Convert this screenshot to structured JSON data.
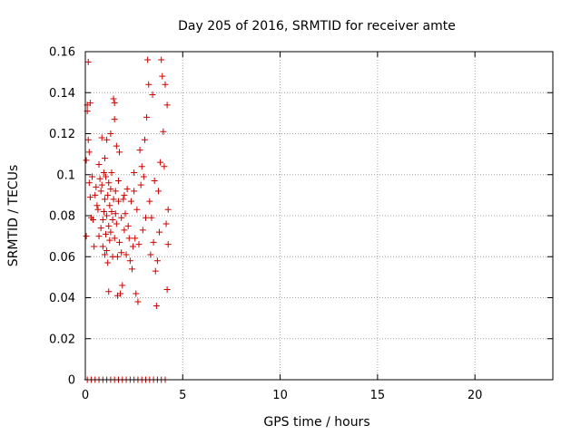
{
  "chart_data": {
    "type": "scatter",
    "title": "Day 205 of 2016, SRMTID for receiver amte",
    "xlabel": "GPS time / hours",
    "ylabel": "SRMTID / TECUs",
    "xlim": [
      0,
      24
    ],
    "ylim": [
      0,
      0.16
    ],
    "xticks": [
      0,
      5,
      10,
      15,
      20
    ],
    "xtick_labels": [
      "0",
      "5",
      "10",
      "15",
      "20"
    ],
    "yticks": [
      0,
      0.02,
      0.04,
      0.06,
      0.08,
      0.1,
      0.12,
      0.14,
      0.16
    ],
    "ytick_labels": [
      "0",
      "0.02",
      "0.04",
      "0.06",
      "0.08",
      "0.1",
      "0.12",
      "0.14",
      "0.16"
    ],
    "grid": true,
    "marker": "plus",
    "color": "#cc0000",
    "series": [
      {
        "name": "SRMTID",
        "points": [
          [
            0.05,
            0.07
          ],
          [
            0.05,
            0.107
          ],
          [
            0.1,
            0.131
          ],
          [
            0.1,
            0.134
          ],
          [
            0.15,
            0.155
          ],
          [
            0.15,
            0.117
          ],
          [
            0.2,
            0.111
          ],
          [
            0.2,
            0.096
          ],
          [
            0.25,
            0.135
          ],
          [
            0.25,
            0.089
          ],
          [
            0.3,
            0.079
          ],
          [
            0.35,
            0.099
          ],
          [
            0.4,
            0.078
          ],
          [
            0.45,
            0.065
          ],
          [
            0.5,
            0.09
          ],
          [
            0.55,
            0.094
          ],
          [
            0.6,
            0.085
          ],
          [
            0.65,
            0.083
          ],
          [
            0.7,
            0.105
          ],
          [
            0.7,
            0.07
          ],
          [
            0.75,
            0.098
          ],
          [
            0.8,
            0.074
          ],
          [
            0.8,
            0.092
          ],
          [
            0.85,
            0.118
          ],
          [
            0.85,
            0.095
          ],
          [
            0.9,
            0.078
          ],
          [
            0.9,
            0.065
          ],
          [
            0.95,
            0.101
          ],
          [
            0.95,
            0.082
          ],
          [
            1.0,
            0.088
          ],
          [
            1.0,
            0.108
          ],
          [
            1.0,
            0.061
          ],
          [
            1.05,
            0.099
          ],
          [
            1.05,
            0.071
          ],
          [
            1.1,
            0.117
          ],
          [
            1.1,
            0.08
          ],
          [
            1.1,
            0.063
          ],
          [
            1.15,
            0.09
          ],
          [
            1.15,
            0.057
          ],
          [
            1.2,
            0.043
          ],
          [
            1.2,
            0.096
          ],
          [
            1.2,
            0.075
          ],
          [
            1.25,
            0.085
          ],
          [
            1.25,
            0.068
          ],
          [
            1.3,
            0.12
          ],
          [
            1.3,
            0.093
          ],
          [
            1.3,
            0.072
          ],
          [
            1.35,
            0.082
          ],
          [
            1.35,
            0.101
          ],
          [
            1.4,
            0.078
          ],
          [
            1.4,
            0.06
          ],
          [
            1.45,
            0.088
          ],
          [
            1.45,
            0.137
          ],
          [
            1.5,
            0.127
          ],
          [
            1.5,
            0.135
          ],
          [
            1.5,
            0.069
          ],
          [
            1.55,
            0.092
          ],
          [
            1.55,
            0.081
          ],
          [
            1.6,
            0.114
          ],
          [
            1.6,
            0.076
          ],
          [
            1.65,
            0.06
          ],
          [
            1.65,
            0.041
          ],
          [
            1.7,
            0.087
          ],
          [
            1.7,
            0.097
          ],
          [
            1.75,
            0.111
          ],
          [
            1.75,
            0.067
          ],
          [
            1.8,
            0.042
          ],
          [
            1.85,
            0.079
          ],
          [
            1.85,
            0.062
          ],
          [
            1.9,
            0.046
          ],
          [
            1.95,
            0.088
          ],
          [
            2.0,
            0.09
          ],
          [
            2.0,
            0.073
          ],
          [
            2.05,
            0.081
          ],
          [
            2.1,
            0.061
          ],
          [
            2.15,
            0.093
          ],
          [
            2.2,
            0.075
          ],
          [
            2.25,
            0.069
          ],
          [
            2.3,
            0.058
          ],
          [
            2.35,
            0.087
          ],
          [
            2.4,
            0.054
          ],
          [
            2.45,
            0.065
          ],
          [
            2.5,
            0.092
          ],
          [
            2.5,
            0.101
          ],
          [
            2.55,
            0.069
          ],
          [
            2.6,
            0.042
          ],
          [
            2.65,
            0.083
          ],
          [
            2.7,
            0.038
          ],
          [
            2.75,
            0.066
          ],
          [
            2.8,
            0.112
          ],
          [
            2.85,
            0.095
          ],
          [
            2.9,
            0.104
          ],
          [
            2.95,
            0.073
          ],
          [
            3.0,
            0.099
          ],
          [
            3.05,
            0.117
          ],
          [
            3.1,
            0.079
          ],
          [
            3.15,
            0.128
          ],
          [
            3.2,
            0.156
          ],
          [
            3.25,
            0.144
          ],
          [
            3.3,
            0.087
          ],
          [
            3.35,
            0.061
          ],
          [
            3.4,
            0.079
          ],
          [
            3.45,
            0.139
          ],
          [
            3.5,
            0.067
          ],
          [
            3.55,
            0.097
          ],
          [
            3.6,
            0.053
          ],
          [
            3.65,
            0.036
          ],
          [
            3.7,
            0.058
          ],
          [
            3.75,
            0.092
          ],
          [
            3.8,
            0.072
          ],
          [
            3.85,
            0.106
          ],
          [
            3.9,
            0.156
          ],
          [
            3.95,
            0.148
          ],
          [
            4.0,
            0.121
          ],
          [
            4.05,
            0.104
          ],
          [
            4.1,
            0.144
          ],
          [
            4.15,
            0.076
          ],
          [
            4.2,
            0.044
          ],
          [
            4.2,
            0.134
          ],
          [
            4.25,
            0.083
          ],
          [
            4.25,
            0.066
          ],
          [
            0.1,
            0
          ],
          [
            0.3,
            0
          ],
          [
            0.5,
            0
          ],
          [
            0.7,
            0
          ],
          [
            0.9,
            0
          ],
          [
            1.1,
            0
          ],
          [
            1.3,
            0
          ],
          [
            1.5,
            0
          ],
          [
            1.7,
            0
          ],
          [
            1.9,
            0
          ],
          [
            2.1,
            0
          ],
          [
            2.3,
            0
          ],
          [
            2.5,
            0
          ],
          [
            2.7,
            0
          ],
          [
            2.9,
            0
          ],
          [
            3.1,
            0
          ],
          [
            3.3,
            0
          ],
          [
            3.5,
            0
          ],
          [
            3.7,
            0
          ],
          [
            3.9,
            0
          ],
          [
            4.1,
            0
          ]
        ]
      }
    ]
  }
}
